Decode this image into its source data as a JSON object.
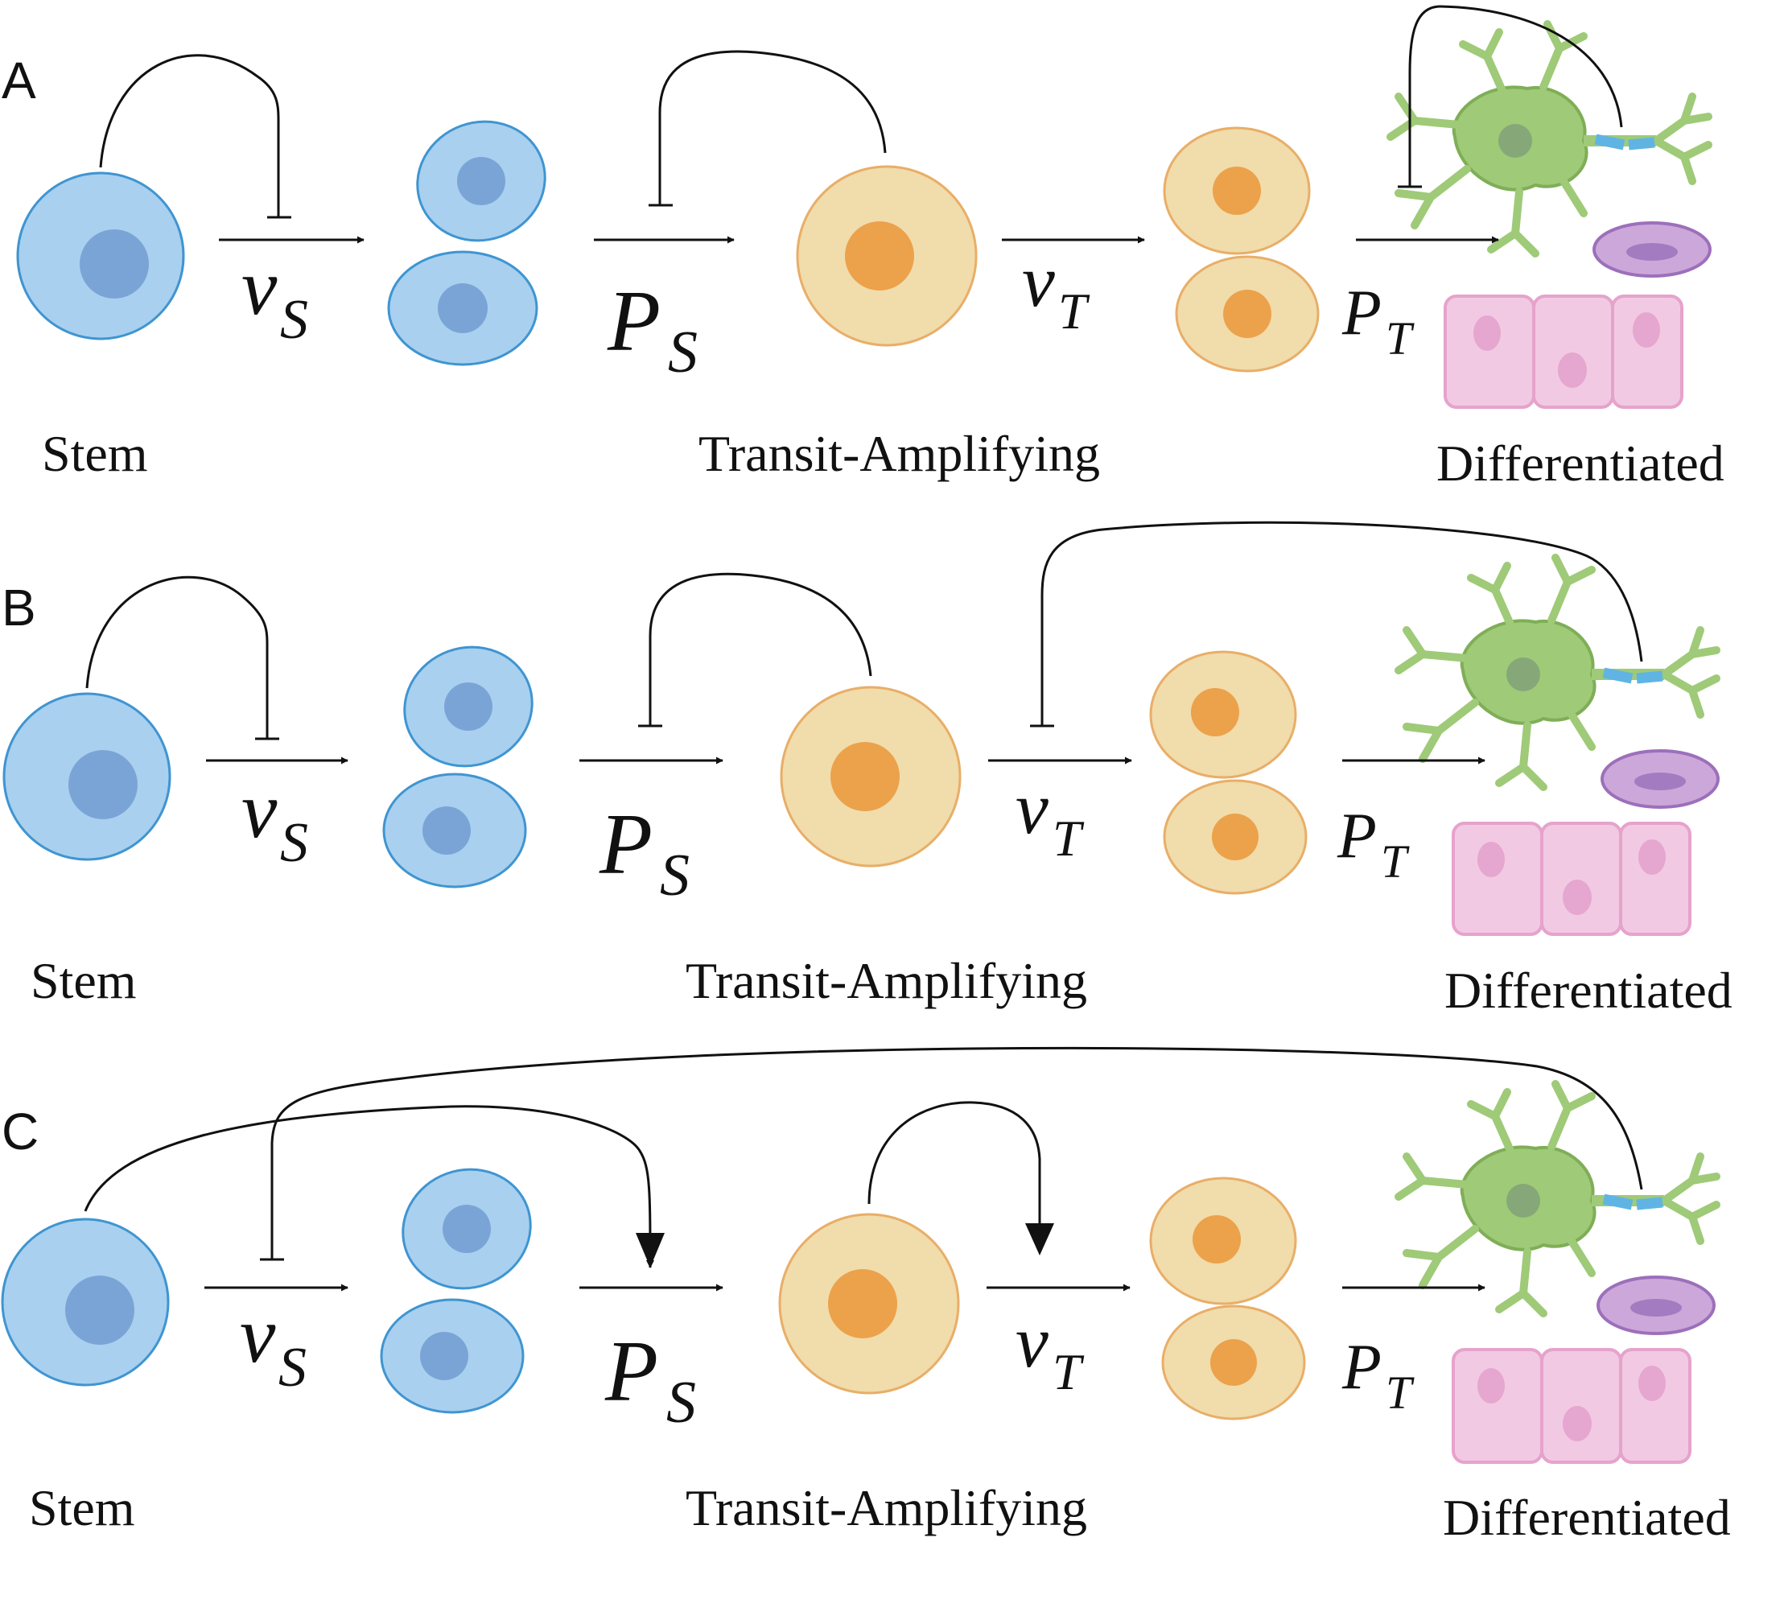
{
  "colors": {
    "stem_fill": "#a9d0ef",
    "stem_stroke": "#3f95d1",
    "stem_nucleus": "#7ba4d6",
    "ta_fill": "#f1dcab",
    "ta_stroke": "#e8ae68",
    "ta_nucleus": "#eba24b",
    "neuron_fill": "#9fca78",
    "neuron_stroke": "#7fae57",
    "neuron_nucleus": "#86a878",
    "axon_segment": "#5fb4e3",
    "rbc_fill": "#cba8d9",
    "rbc_stroke": "#9d6fbb",
    "rbc_center": "#a27bc0",
    "epi_fill": "#f2c9e3",
    "epi_stroke": "#e5a3cb",
    "epi_nucleus": "#e5a6cf",
    "line": "#111111"
  },
  "panels": [
    {
      "letter": "A",
      "stem_label": "Stem",
      "ta_label": "Transit-Amplifying",
      "diff_label": "Differentiated",
      "vs_main": "v",
      "vs_sub": "S",
      "ps_main": "P",
      "ps_sub": "S",
      "vt_main": "v",
      "vt_sub": "T",
      "pt_main": "P",
      "pt_sub": "T"
    },
    {
      "letter": "B",
      "stem_label": "Stem",
      "ta_label": "Transit-Amplifying",
      "diff_label": "Differentiated",
      "vs_main": "v",
      "vs_sub": "S",
      "ps_main": "P",
      "ps_sub": "S",
      "vt_main": "v",
      "vt_sub": "T",
      "pt_main": "P",
      "pt_sub": "T"
    },
    {
      "letter": "C",
      "stem_label": "Stem",
      "ta_label": "Transit-Amplifying",
      "diff_label": "Differentiated",
      "vs_main": "v",
      "vs_sub": "S",
      "ps_main": "P",
      "ps_sub": "S",
      "vt_main": "v",
      "vt_sub": "T",
      "pt_main": "P",
      "pt_sub": "T"
    }
  ]
}
